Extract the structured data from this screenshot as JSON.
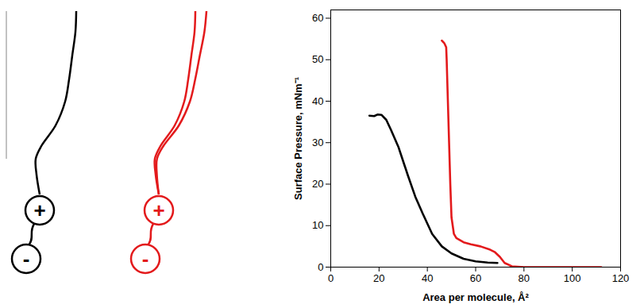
{
  "chart_data": {
    "type": "line",
    "x_label": "Area per molecule, Å²",
    "y_label": "Surface Pressure, mNm⁻¹",
    "xlim": [
      0,
      120
    ],
    "xticks": [
      0,
      20,
      40,
      60,
      80,
      100,
      120
    ],
    "ylim": [
      0,
      62
    ],
    "yticks": [
      0,
      10,
      20,
      30,
      40,
      50,
      60
    ],
    "series": [
      {
        "color": "#000000",
        "x": [
          69,
          65,
          60,
          55,
          50,
          46,
          42,
          38,
          35,
          32,
          30,
          28,
          25,
          23,
          21,
          19.5,
          18,
          16
        ],
        "values": [
          1.0,
          1.1,
          1.4,
          2.0,
          3.3,
          5,
          8,
          13,
          17,
          22,
          25.5,
          29,
          33,
          35.5,
          36.7,
          36.8,
          36.4,
          36.5
        ]
      },
      {
        "color": "#e31a1c",
        "x": [
          112,
          100,
          90,
          80,
          75,
          72,
          70,
          68,
          66,
          62,
          58,
          55,
          52,
          51,
          50,
          49.5,
          49,
          48.5,
          48,
          47.8,
          47,
          46.5,
          46
        ],
        "values": [
          0,
          0,
          0,
          0,
          0.2,
          1,
          2.5,
          3.6,
          4.2,
          5,
          5.5,
          6,
          7,
          8,
          12,
          20,
          30,
          40,
          50,
          53,
          54,
          54.3,
          54.6
        ]
      }
    ]
  },
  "diagram": {
    "molecules": [
      {
        "color": "#000000",
        "tails": 1,
        "head_labels": [
          "+",
          "-"
        ]
      },
      {
        "color": "#e31a1c",
        "tails": 2,
        "head_labels": [
          "+",
          "-"
        ]
      }
    ]
  }
}
